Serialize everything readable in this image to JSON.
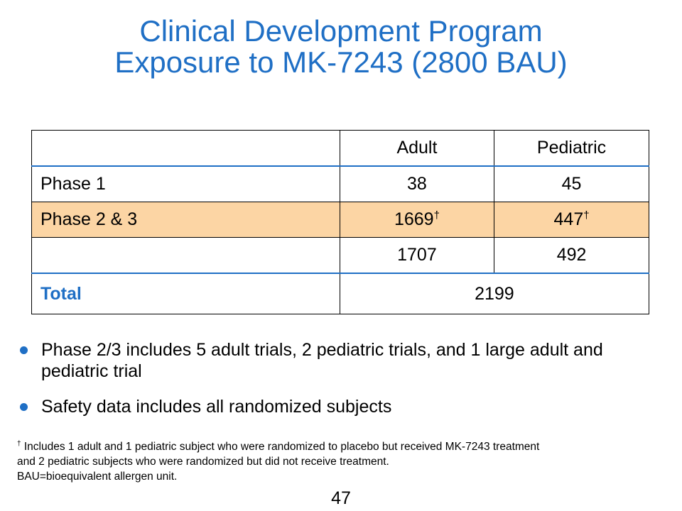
{
  "title": {
    "line1": "Clinical Development Program",
    "line2": "Exposure to MK-7243 (2800 BAU)"
  },
  "table": {
    "columns": [
      "",
      "Adult",
      "Pediatric"
    ],
    "rows": [
      {
        "label": "Phase 1",
        "adult": "38",
        "pediatric": "45"
      },
      {
        "label": "Phase 2 & 3",
        "adult": "1669",
        "pediatric": "447",
        "marker": "†"
      },
      {
        "label": "",
        "adult": "1707",
        "pediatric": "492"
      }
    ],
    "total": {
      "label": "Total",
      "value": "2199"
    }
  },
  "bullets": [
    "Phase 2/3 includes 5 adult trials, 2 pediatric trials, and 1 large adult and pediatric trial",
    "Safety data includes all randomized subjects"
  ],
  "footnote": {
    "marker": "†",
    "line1": " Includes 1 adult and 1 pediatric subject who were randomized to placebo but received MK-7243 treatment",
    "line2": "and 2 pediatric subjects who were randomized but did not receive treatment.",
    "line3": "BAU=bioequivalent allergen unit."
  },
  "page_number": "47",
  "colors": {
    "accent": "#1f6fc5",
    "highlight_row": "#fcd5a4"
  }
}
